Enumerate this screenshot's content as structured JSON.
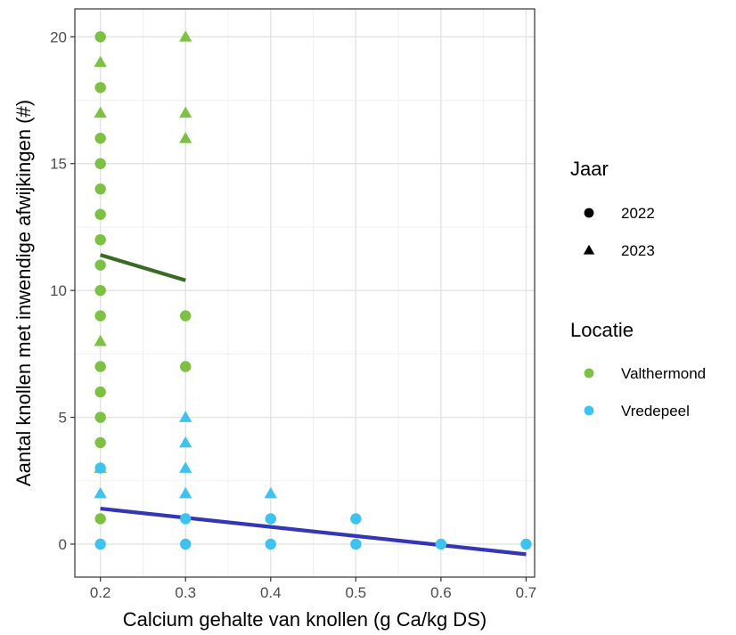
{
  "chart_data": {
    "type": "scatter",
    "xlabel": "Calcium gehalte van knollen (g Ca/kg DS)",
    "ylabel": "Aantal knollen met inwendige afwijkingen (#)",
    "xlim": [
      0.17,
      0.71
    ],
    "ylim": [
      -1.3,
      21.1
    ],
    "x_ticks": [
      0.2,
      0.3,
      0.4,
      0.5,
      0.6,
      0.7
    ],
    "x_tick_labels": [
      "0.2",
      "0.3",
      "0.4",
      "0.5",
      "0.6",
      "0.7"
    ],
    "y_ticks": [
      0,
      5,
      10,
      15,
      20
    ],
    "y_tick_labels": [
      "0",
      "5",
      "10",
      "15",
      "20"
    ],
    "grid": true,
    "legend_position": "right",
    "legends": [
      {
        "title": "Jaar",
        "entries": [
          {
            "label": "2022",
            "shape": "circle"
          },
          {
            "label": "2023",
            "shape": "triangle"
          }
        ]
      },
      {
        "title": "Locatie",
        "entries": [
          {
            "label": "Valthermond",
            "color": "#7cc142"
          },
          {
            "label": "Vredepeel",
            "color": "#3ec3f0"
          }
        ]
      }
    ],
    "series": [
      {
        "locatie": "Valthermond",
        "jaar": "2022",
        "color": "#7cc142",
        "shape": "circle",
        "points": [
          [
            0.2,
            20
          ],
          [
            0.2,
            18
          ],
          [
            0.2,
            16
          ],
          [
            0.2,
            15
          ],
          [
            0.2,
            14
          ],
          [
            0.2,
            13
          ],
          [
            0.2,
            12
          ],
          [
            0.2,
            11
          ],
          [
            0.2,
            10
          ],
          [
            0.2,
            9
          ],
          [
            0.2,
            7
          ],
          [
            0.2,
            6
          ],
          [
            0.2,
            5
          ],
          [
            0.2,
            4
          ],
          [
            0.2,
            1
          ],
          [
            0.3,
            9
          ],
          [
            0.3,
            7
          ]
        ]
      },
      {
        "locatie": "Valthermond",
        "jaar": "2023",
        "color": "#7cc142",
        "shape": "triangle",
        "points": [
          [
            0.2,
            19
          ],
          [
            0.2,
            17
          ],
          [
            0.2,
            8
          ],
          [
            0.2,
            3
          ],
          [
            0.3,
            20
          ],
          [
            0.3,
            17
          ],
          [
            0.3,
            16
          ]
        ]
      },
      {
        "locatie": "Vredepeel",
        "jaar": "2022",
        "color": "#3ec3f0",
        "shape": "circle",
        "points": [
          [
            0.2,
            3
          ],
          [
            0.2,
            0
          ],
          [
            0.3,
            1
          ],
          [
            0.3,
            0
          ],
          [
            0.4,
            1
          ],
          [
            0.4,
            0
          ],
          [
            0.5,
            1
          ],
          [
            0.5,
            0
          ],
          [
            0.6,
            0
          ],
          [
            0.7,
            0
          ]
        ]
      },
      {
        "locatie": "Vredepeel",
        "jaar": "2023",
        "color": "#3ec3f0",
        "shape": "triangle",
        "points": [
          [
            0.2,
            2
          ],
          [
            0.3,
            5
          ],
          [
            0.3,
            4
          ],
          [
            0.3,
            3
          ],
          [
            0.3,
            2
          ],
          [
            0.4,
            2
          ]
        ]
      }
    ],
    "trend_lines": [
      {
        "locatie": "Valthermond",
        "color": "#3a6b24",
        "points": [
          [
            0.2,
            11.4
          ],
          [
            0.3,
            10.4
          ]
        ]
      },
      {
        "locatie": "Vredepeel",
        "color": "#3535b8",
        "points": [
          [
            0.2,
            1.4
          ],
          [
            0.7,
            -0.4
          ]
        ]
      }
    ]
  }
}
